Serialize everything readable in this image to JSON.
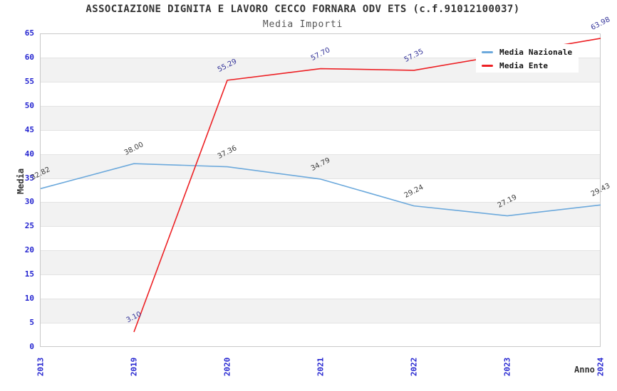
{
  "chart_data": {
    "type": "line",
    "title": "ASSOCIAZIONE DIGNITA E LAVORO CECCO FORNARA ODV ETS (c.f.91012100037)",
    "subtitle": "Media Importi",
    "xlabel": "Anno",
    "ylabel": "Media",
    "categories": [
      "2013",
      "2019",
      "2020",
      "2021",
      "2022",
      "2023",
      "2024"
    ],
    "series": [
      {
        "name": "Media Nazionale",
        "color": "#6CA9DC",
        "label_color": "#3C3C3C",
        "values": [
          32.82,
          38.0,
          37.36,
          34.79,
          29.24,
          27.19,
          29.43
        ]
      },
      {
        "name": "Media Ente",
        "color": "#ED2024",
        "label_color": "#333399",
        "values": [
          null,
          3.1,
          55.29,
          57.7,
          57.35,
          null,
          63.98
        ]
      }
    ],
    "ylim": [
      0,
      65
    ],
    "ytick_step": 5,
    "value_decimals": 2,
    "grid": "horizontal-bands",
    "legend_position": "top-right"
  },
  "colors": {
    "axis_tick": "#2424D0",
    "band": "#FFFFFF",
    "band_alt": "#F2F2F2",
    "gridline": "#E3E3E3",
    "plot_border": "#C9C9C9",
    "title": "#333333",
    "subtitle": "#555555",
    "background": "#FFFFFF"
  }
}
